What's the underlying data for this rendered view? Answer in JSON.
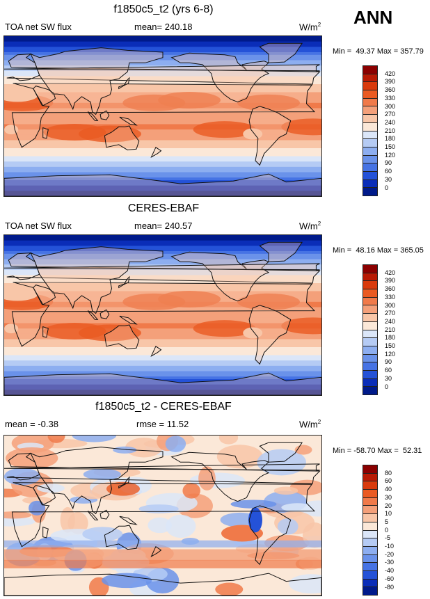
{
  "season": "ANN",
  "panels": [
    {
      "title": "f1850c5_t2 (yrs 6-8)",
      "left_label": "TOA net SW flux",
      "center_label": "mean= 240.18",
      "units": "W/m",
      "units_sup": "2",
      "minmax": "Min =  49.37 Max = 357.79",
      "kind": "model"
    },
    {
      "title": "CERES-EBAF",
      "left_label": "TOA net SW flux",
      "center_label": "mean= 240.57",
      "units": "W/m",
      "units_sup": "2",
      "minmax": "Min =  48.16 Max = 365.05",
      "kind": "obs"
    },
    {
      "title": "f1850c5_t2 - CERES-EBAF",
      "left_label": "mean =  -0.38",
      "center_label": "rmse =  11.52",
      "units": "W/m",
      "units_sup": "2",
      "minmax": "Min = -58.70 Max =  52.31",
      "kind": "diff"
    }
  ],
  "colorbars": {
    "abs": {
      "levels": [
        "420",
        "390",
        "360",
        "330",
        "300",
        "270",
        "240",
        "210",
        "180",
        "150",
        "120",
        "90",
        "60",
        "30",
        "0"
      ],
      "colors": [
        "#8b0000",
        "#b81a04",
        "#d93a0c",
        "#ea5a22",
        "#f07a4a",
        "#f4a07a",
        "#f8c6a8",
        "#fbe8d8",
        "#dbe6f8",
        "#b5cbf4",
        "#8daef0",
        "#6a92ea",
        "#4673e4",
        "#2452d8",
        "#0a2db8",
        "#001a8a"
      ]
    },
    "diff": {
      "levels": [
        "80",
        "60",
        "40",
        "30",
        "20",
        "10",
        "5",
        "0",
        "-5",
        "-10",
        "-20",
        "-30",
        "-40",
        "-60",
        "-80"
      ],
      "colors": [
        "#8b0000",
        "#b81a04",
        "#d93a0c",
        "#ea5a22",
        "#f07a4a",
        "#f4a07a",
        "#f8c6a8",
        "#fbe8d8",
        "#dbe6f8",
        "#b5cbf4",
        "#8daef0",
        "#6a92ea",
        "#4673e4",
        "#2452d8",
        "#0a2db8",
        "#001a8a"
      ]
    }
  }
}
